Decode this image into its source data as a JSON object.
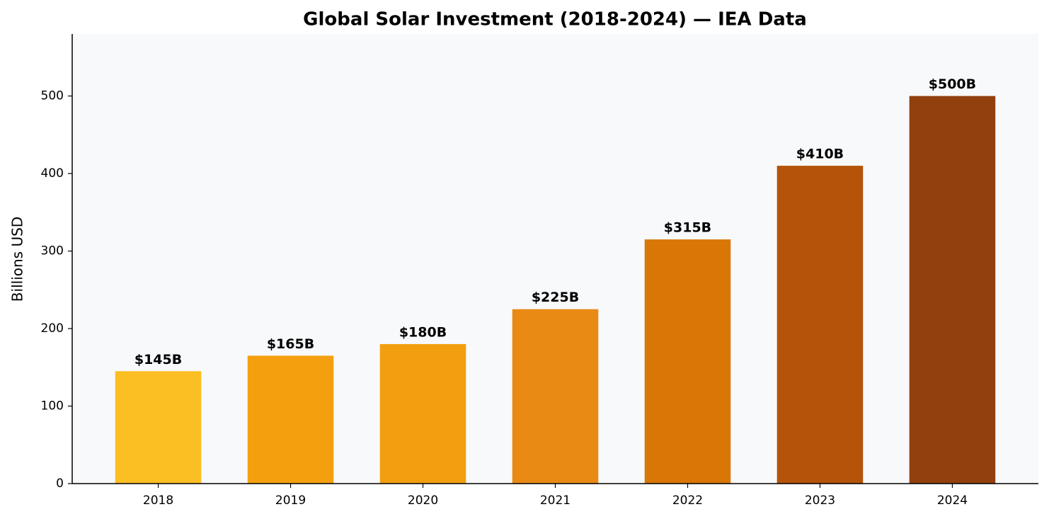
{
  "chart_data": {
    "type": "bar",
    "title": "Global Solar Investment (2018-2024) — IEA Data",
    "y_label": "Billions USD",
    "categories": [
      "2018",
      "2019",
      "2020",
      "2021",
      "2022",
      "2023",
      "2024"
    ],
    "values": [
      145,
      165,
      180,
      225,
      315,
      410,
      500
    ],
    "value_labels": [
      "$145B",
      "$165B",
      "$180B",
      "$225B",
      "$315B",
      "$410B",
      "$500B"
    ],
    "colors": [
      "#fbbf24",
      "#f4a00e",
      "#f39e0f",
      "#e98a15",
      "#d97706",
      "#b45309",
      "#92400e"
    ],
    "ylim": [
      0,
      580
    ],
    "yticks": [
      0,
      100,
      200,
      300,
      400,
      500
    ],
    "grid": false
  }
}
